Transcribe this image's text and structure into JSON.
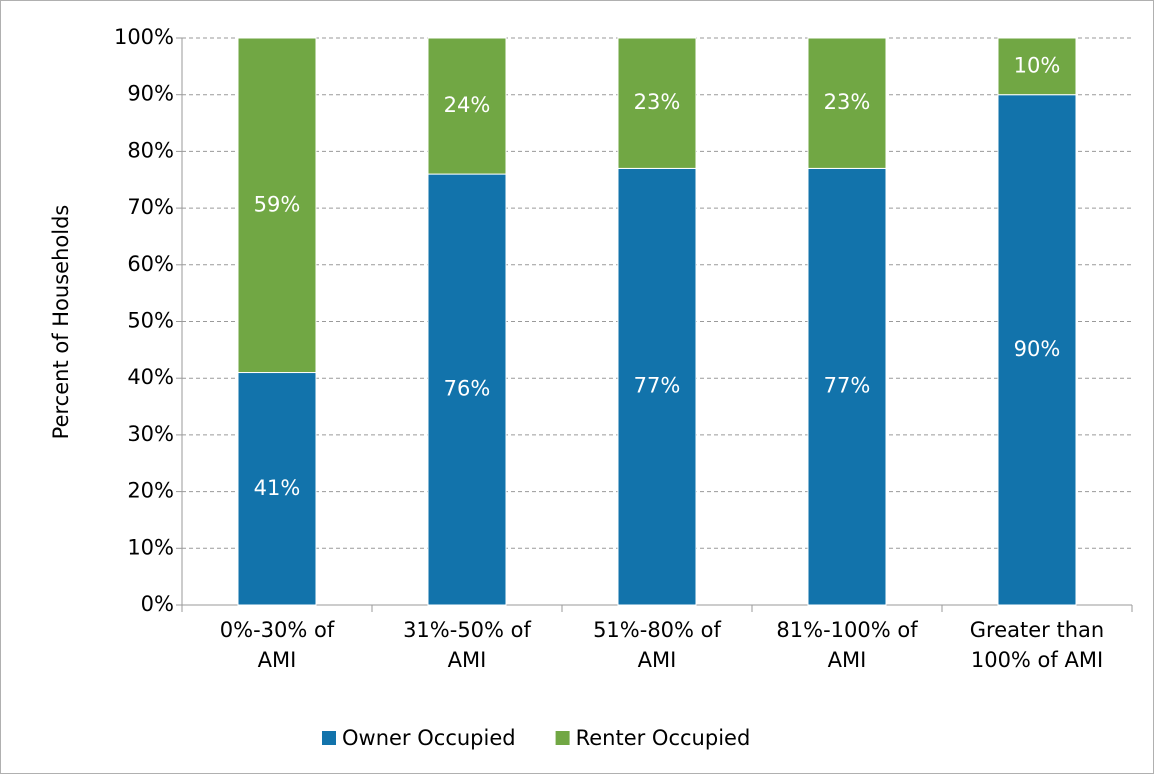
{
  "chart_data": {
    "type": "stacked_bar",
    "y_label": "Percent of Households",
    "categories": [
      "0%-30% of\nAMI",
      "31%-50% of\nAMI",
      "51%-80% of\nAMI",
      "81%-100% of\nAMI",
      "Greater than\n100% of AMI"
    ],
    "series": [
      {
        "name": "Owner Occupied",
        "color": "#1273ab",
        "values": [
          41,
          76,
          77,
          77,
          90
        ],
        "value_labels": [
          "41%",
          "76%",
          "77%",
          "77%",
          "90%"
        ]
      },
      {
        "name": "Renter Occupied",
        "color": "#71a744",
        "values": [
          59,
          24,
          23,
          23,
          10
        ],
        "value_labels": [
          "59%",
          "24%",
          "23%",
          "23%",
          "10%"
        ]
      }
    ],
    "ylim": [
      0,
      100
    ],
    "yticks": [
      {
        "value": 0,
        "label": "0%"
      },
      {
        "value": 10,
        "label": "10%"
      },
      {
        "value": 20,
        "label": "20%"
      },
      {
        "value": 30,
        "label": "30%"
      },
      {
        "value": 40,
        "label": "40%"
      },
      {
        "value": 50,
        "label": "50%"
      },
      {
        "value": 60,
        "label": "60%"
      },
      {
        "value": 70,
        "label": "70%"
      },
      {
        "value": 80,
        "label": "80%"
      },
      {
        "value": 90,
        "label": "90%"
      },
      {
        "value": 100,
        "label": "100%"
      }
    ],
    "grid": true,
    "legend": "bottom"
  }
}
